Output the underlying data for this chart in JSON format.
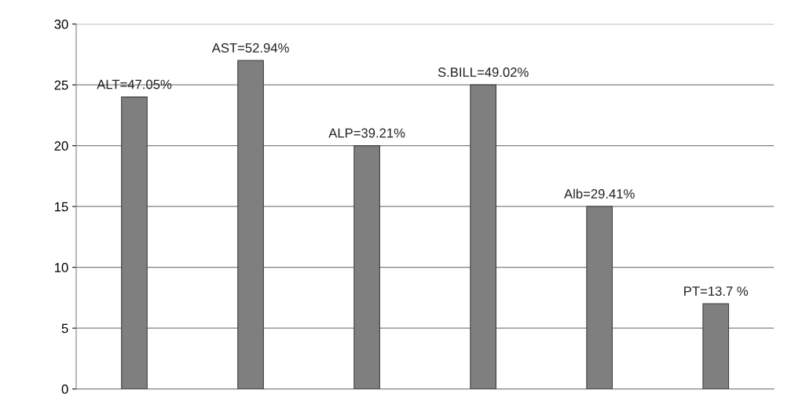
{
  "chart_data": {
    "type": "bar",
    "categories": [
      null,
      null,
      null,
      null,
      null,
      null
    ],
    "values": [
      24,
      27,
      20,
      25,
      15,
      7
    ],
    "annotations": [
      "ALT=47.05%",
      "AST=52.94%",
      "ALP=39.21%",
      "S.BILL=49.02%",
      "Alb=29.41%",
      "PT=13.7 %"
    ],
    "color": "#7f7f7f",
    "ylim": [
      0,
      30
    ],
    "yticks": [
      0,
      5,
      10,
      15,
      20,
      25,
      30
    ],
    "grid": "y"
  }
}
